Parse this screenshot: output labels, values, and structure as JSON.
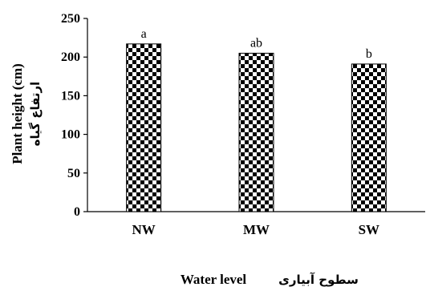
{
  "chart_data": {
    "type": "bar",
    "categories": [
      "NW",
      "MW",
      "SW"
    ],
    "values": [
      217,
      205,
      191
    ],
    "data_labels": [
      "a",
      "ab",
      "b"
    ],
    "title": "",
    "xlabel": "Water level",
    "xlabel_fa": "سطوح آبیاری",
    "ylabel": "Plant height (cm)",
    "ylabel_fa": "ارتفاع گیاه",
    "ylim": [
      0,
      250
    ],
    "yticks": [
      0,
      50,
      100,
      150,
      200,
      250
    ],
    "grid": false,
    "legend": "none",
    "bar_pattern": "checkerboard",
    "colors": {
      "bar_dark": "#000000",
      "bar_light": "#ffffff",
      "axis": "#000000"
    }
  }
}
